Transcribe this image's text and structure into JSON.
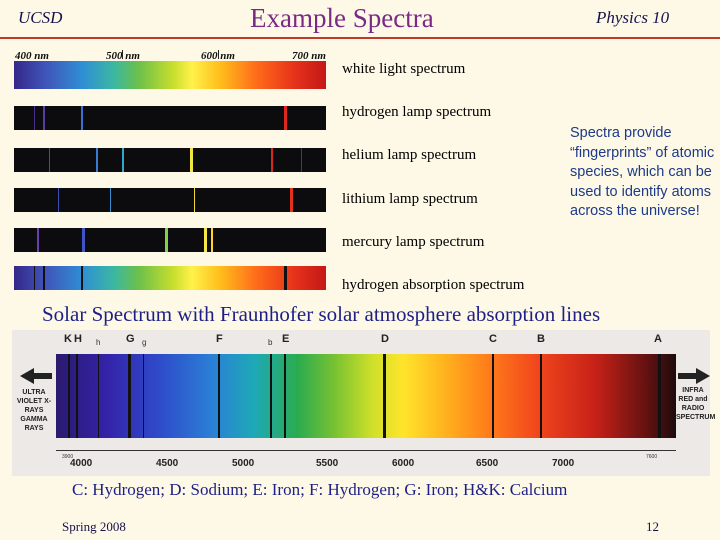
{
  "header": {
    "left": "UCSD",
    "title": "Example Spectra",
    "right": "Physics 10"
  },
  "scale": [
    "400 nm",
    "500 nm",
    "600 nm",
    "700 nm"
  ],
  "spectra": [
    {
      "label": "white light spectrum"
    },
    {
      "label": "hydrogen lamp spectrum"
    },
    {
      "label": "helium lamp spectrum"
    },
    {
      "label": "lithium lamp spectrum"
    },
    {
      "label": "mercury lamp spectrum"
    },
    {
      "label": "hydrogen absorption spectrum"
    }
  ],
  "note": "Spectra provide “fingerprints” of atomic species, which can be used to identify atoms across the universe!",
  "solar": {
    "title": "Solar Spectrum with Fraunhofer solar atmosphere absorption lines",
    "letters": [
      "K",
      "H",
      "h",
      "G",
      "g",
      "F",
      "b",
      "E",
      "D",
      "C",
      "B",
      "A"
    ],
    "left_side": "ULTRA VIOLET X-RAYS GAMMA RAYS",
    "right_side": "INFRA RED and RADIO SPECTRUM",
    "axis": [
      "4000",
      "4500",
      "5000",
      "5500",
      "6000",
      "6500",
      "7000"
    ],
    "small_axis": [
      "3900",
      "7600"
    ]
  },
  "caption": "C: Hydrogen; D: Sodium; E: Iron; F: Hydrogen; G: Iron; H&K: Calcium",
  "footer": {
    "left": "Spring 2008",
    "right": "12"
  },
  "colors": {
    "title": "#7a2a86",
    "rule": "#c0392b",
    "note": "#1d3a8a",
    "heading": "#1d1f86",
    "background": "#fdf9e6"
  }
}
